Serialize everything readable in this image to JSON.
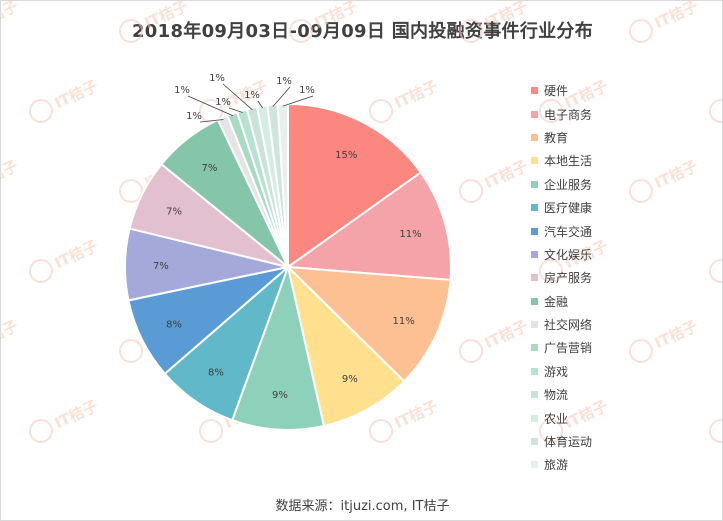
{
  "title": "2018年09月03日-09月09日  国内投融资事件行业分布",
  "source": "数据来源：itjuzi.com, IT桔子",
  "watermark": "IT桔子",
  "chart_data": {
    "type": "pie",
    "title": "2018年09月03日-09月09日  国内投融资事件行业分布",
    "label_format": "percent",
    "legend_position": "right",
    "categories": [
      "硬件",
      "电子商务",
      "教育",
      "本地生活",
      "企业服务",
      "医疗健康",
      "汽车交通",
      "文化娱乐",
      "房产服务",
      "金融",
      "社交网络",
      "广告营销",
      "游戏",
      "物流",
      "农业",
      "体育运动",
      "旅游"
    ],
    "values": [
      15,
      11,
      11,
      9,
      9,
      8,
      8,
      7,
      7,
      7,
      1,
      1,
      1,
      1,
      1,
      1,
      1
    ],
    "labels": [
      "15%",
      "11%",
      "11%",
      "9%",
      "9%",
      "8%",
      "8%",
      "7%",
      "7%",
      "7%",
      "1%",
      "1%",
      "1%",
      "1%",
      "1%",
      "1%",
      "1%"
    ],
    "colors": [
      "#fc8680",
      "#f4a3a8",
      "#fdc093",
      "#fee08f",
      "#8ed1ba",
      "#61b8c9",
      "#5a9bd5",
      "#a5a9d9",
      "#e2c0d0",
      "#85c5a9",
      "#e4e4e4",
      "#a7dcc2",
      "#b7e1d1",
      "#c8e3d9",
      "#d6ebe4",
      "#cde4df",
      "#e8efec"
    ]
  }
}
